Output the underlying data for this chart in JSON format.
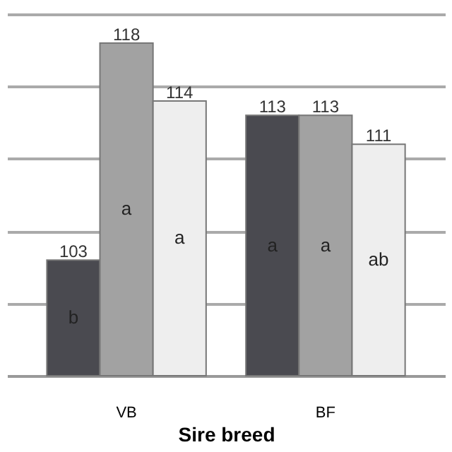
{
  "chart_data": {
    "type": "bar",
    "xlabel": "Sire breed",
    "categories": [
      "VB",
      "BF"
    ],
    "series": [
      {
        "color": "#4a4a50",
        "values": [
          103,
          113
        ]
      },
      {
        "color": "#a2a2a2",
        "values": [
          118,
          113
        ]
      },
      {
        "color": "#eeeeee",
        "values": [
          114,
          111
        ]
      }
    ],
    "ylim": [
      95,
      120
    ],
    "yticks": [
      {
        "value": 100,
        "label": null
      },
      {
        "value": 105,
        "label": null
      },
      {
        "value": 110,
        "label": null
      },
      {
        "value": 115,
        "label": null
      },
      {
        "value": 120,
        "label": null
      }
    ],
    "grid": "y",
    "data_labels": true,
    "tick_labels": "x",
    "annotations": [
      "b",
      "a",
      "a",
      "a",
      "a",
      "ab"
    ]
  }
}
